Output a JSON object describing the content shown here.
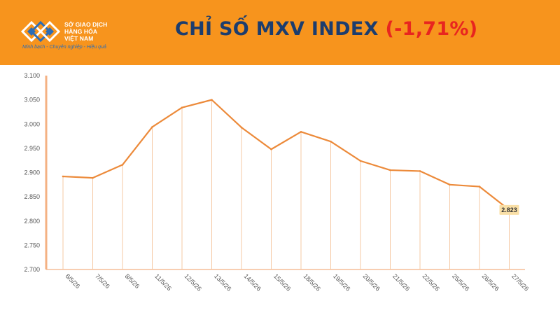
{
  "header": {
    "logo": {
      "name_lines": [
        "SỞ GIAO DỊCH",
        "HÀNG HÓA",
        "VIỆT NAM"
      ],
      "slogan": "Minh bạch - Chuyên nghiệp - Hiệu quả"
    },
    "title": "CHỈ SỐ MXV INDEX",
    "change": "(-1,71%)",
    "colors": {
      "background": "#f7941d",
      "title": "#1c3d6e",
      "change": "#e8251f"
    }
  },
  "chart_data": {
    "type": "line",
    "title": "",
    "xlabel": "",
    "ylabel": "",
    "categories": [
      "6/5/26",
      "7/5/26",
      "8/5/26",
      "11/5/26",
      "12/5/26",
      "13/5/26",
      "14/5/26",
      "15/5/26",
      "18/5/26",
      "19/5/26",
      "20/5/26",
      "21/5/26",
      "22/5/26",
      "25/5/26",
      "26/5/26",
      "27/5/26"
    ],
    "values": [
      2892,
      2889,
      2916,
      2994,
      3034,
      3050,
      2993,
      2948,
      2984,
      2964,
      2924,
      2905,
      2903,
      2875,
      2871,
      2823
    ],
    "ylim": [
      2700,
      3100
    ],
    "yticks": [
      2700,
      2750,
      2800,
      2850,
      2900,
      2950,
      3000,
      3050,
      3100
    ],
    "ytick_labels": [
      "2.700",
      "2.750",
      "2.800",
      "2.850",
      "2.900",
      "2.950",
      "3.000",
      "3.050",
      "3.100"
    ],
    "last_value_label": "2.823",
    "grid": false,
    "line_color": "#ec8a3a",
    "drop_line_color": "#f5c9a3",
    "axis_color": "#f4b183",
    "label_box_color": "#f9dfa6"
  }
}
